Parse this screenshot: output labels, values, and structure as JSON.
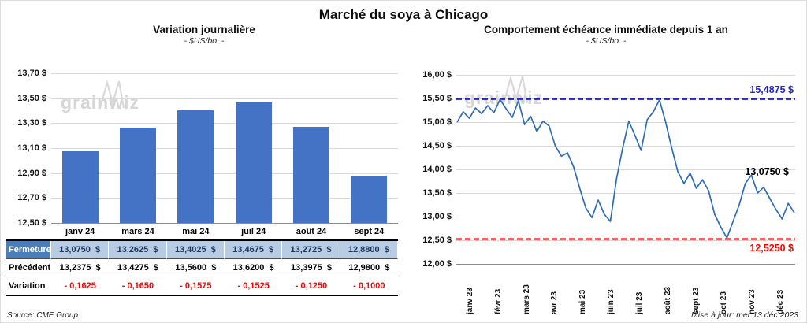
{
  "header": {
    "title": "Marché du soya à Chicago"
  },
  "watermark": {
    "text": "grainwiz"
  },
  "footer": {
    "source": "Source: CME Group",
    "updated": "Mise à jour: mer 13 déc 2023"
  },
  "chart_data": [
    {
      "type": "bar",
      "title": "Variation  journalière",
      "subtitle": "- $US/bo. -",
      "categories": [
        "janv 24",
        "mars 24",
        "mai 24",
        "juil 24",
        "août 24",
        "sept 24"
      ],
      "values": [
        13.075,
        13.2625,
        13.4025,
        13.4675,
        13.2725,
        12.88
      ],
      "ylim": [
        12.5,
        13.7
      ],
      "yticks": [
        "13,70 $",
        "13,50 $",
        "13,30 $",
        "13,10 $",
        "12,90 $",
        "12,70 $",
        "12,50 $"
      ],
      "bar_color": "#4472c4",
      "table": {
        "rows": [
          {
            "label": "Fermeture",
            "values": [
              "13,0750  $",
              "13,2625  $",
              "13,4025  $",
              "13,4675  $",
              "13,2725  $",
              "12,8800  $"
            ]
          },
          {
            "label": "Précédent",
            "values": [
              "13,2375  $",
              "13,4275  $",
              "13,5600  $",
              "13,6200  $",
              "13,3975  $",
              "12,9800  $"
            ]
          },
          {
            "label": "Variation",
            "values": [
              "- 0,1625",
              "- 0,1650",
              "- 0,1575",
              "- 0,1525",
              "- 0,1250",
              "- 0,1000"
            ]
          }
        ]
      }
    },
    {
      "type": "line",
      "title": "Comportement  échéance  immédiate  depuis 1 an",
      "subtitle": "- $US/bo. -",
      "x_labels": [
        "janv 23",
        "févr 23",
        "mars 23",
        "avr 23",
        "mai 23",
        "juin 23",
        "juil 23",
        "août 23",
        "sept 23",
        "oct 23",
        "nov 23",
        "déc 23"
      ],
      "values": [
        15.0,
        15.22,
        15.08,
        15.3,
        15.18,
        15.35,
        15.2,
        15.48,
        15.28,
        15.1,
        15.45,
        14.95,
        15.12,
        14.8,
        15.02,
        14.92,
        14.5,
        14.28,
        14.35,
        14.05,
        13.6,
        13.18,
        12.98,
        13.35,
        13.05,
        12.9,
        13.8,
        14.45,
        15.02,
        14.72,
        14.4,
        15.05,
        15.22,
        15.47,
        15.0,
        14.45,
        13.95,
        13.7,
        13.92,
        13.6,
        13.78,
        13.55,
        13.05,
        12.78,
        12.55,
        12.9,
        13.25,
        13.7,
        13.88,
        13.5,
        13.62,
        13.38,
        13.15,
        12.95,
        13.28,
        13.08
      ],
      "ylim": [
        12.0,
        16.0
      ],
      "yticks": [
        "16,00 $",
        "15,50 $",
        "15,00 $",
        "14,50 $",
        "14,00 $",
        "13,50 $",
        "13,00 $",
        "12,50 $",
        "12,00 $"
      ],
      "line_color": "#2e6cb5",
      "ref_lines": [
        {
          "value": 15.4875,
          "label": "15,4875 $",
          "color": "#2222cc"
        },
        {
          "value": 12.525,
          "label": "12,5250 $",
          "color": "#ff0000"
        }
      ],
      "annotation": {
        "value": 13.075,
        "label": "13,0750 $",
        "color": "#000000"
      }
    }
  ]
}
